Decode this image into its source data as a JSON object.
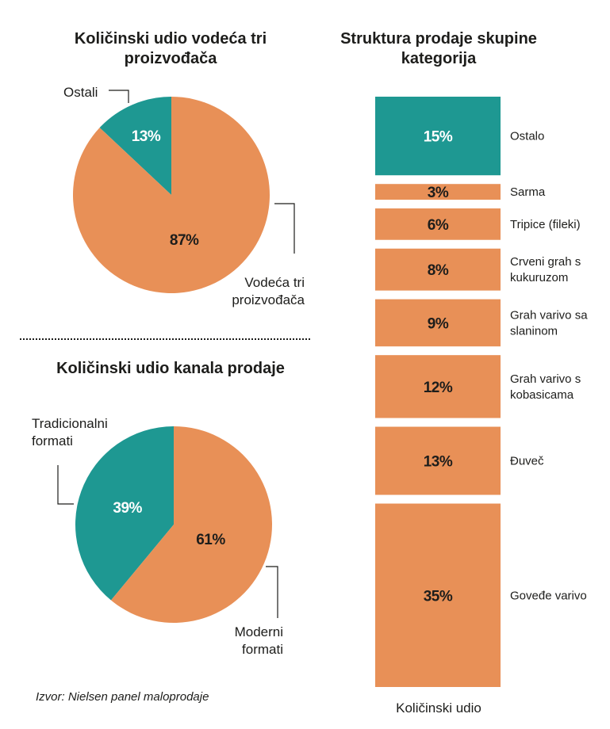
{
  "colors": {
    "orange": "#E89057",
    "teal": "#1E9892",
    "text": "#1d1d1b",
    "white": "#ffffff",
    "line": "#1d1d1b"
  },
  "chart_data": [
    {
      "type": "pie",
      "title": "Količinski udio vodeća tri proizvođača",
      "slices": [
        {
          "label": "Ostali",
          "value": 13,
          "display": "13%",
          "color": "#1E9892"
        },
        {
          "label": "Vodeća tri proizvođača",
          "value": 87,
          "display": "87%",
          "color": "#E89057"
        }
      ]
    },
    {
      "type": "pie",
      "title": "Količinski udio kanala prodaje",
      "slices": [
        {
          "label": "Tradicionalni formati",
          "value": 39,
          "display": "39%",
          "color": "#1E9892"
        },
        {
          "label": "Moderni formati",
          "value": 61,
          "display": "61%",
          "color": "#E89057"
        }
      ]
    },
    {
      "type": "bar",
      "title": "Struktura prodaje skupine kategorija",
      "xlabel": "Količinski udio",
      "categories": [
        "Ostalo",
        "Sarma",
        "Tripice (fileki)",
        "Crveni grah s kukuruzom",
        "Grah varivo sa slaninom",
        "Grah varivo s kobasicama",
        "Đuveč",
        "Goveđe varivo"
      ],
      "values": [
        15,
        3,
        6,
        8,
        9,
        12,
        13,
        35
      ],
      "labels": [
        "15%",
        "3%",
        "6%",
        "8%",
        "9%",
        "12%",
        "13%",
        "35%"
      ],
      "colors": [
        "#1E9892",
        "#E89057",
        "#E89057",
        "#E89057",
        "#E89057",
        "#E89057",
        "#E89057",
        "#E89057"
      ]
    }
  ],
  "source": "Izvor: Nielsen panel maloprodaje"
}
